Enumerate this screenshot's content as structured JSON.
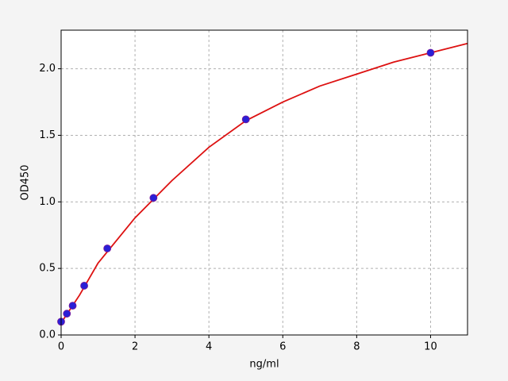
{
  "chart_data": {
    "type": "scatter",
    "xlabel": "ng/ml",
    "ylabel": "OD450",
    "xlim": [
      0,
      11
    ],
    "ylim": [
      0,
      2.29
    ],
    "xticks": [
      0,
      2,
      4,
      6,
      8,
      10
    ],
    "yticks": [
      {
        "value": 0,
        "label": "0.0"
      },
      0.5,
      {
        "value": 1,
        "label": "1.0"
      },
      1.5,
      {
        "value": 2,
        "label": "2.0"
      }
    ],
    "grid": true,
    "series": [
      {
        "type": "line",
        "color": "#dd1111",
        "x": [
          0,
          0.5,
          1,
          2,
          3,
          4,
          5,
          6,
          7,
          8,
          9,
          10,
          11
        ],
        "values": [
          0.09,
          0.3,
          0.54,
          0.88,
          1.16,
          1.41,
          1.61,
          1.75,
          1.87,
          1.96,
          2.05,
          2.12,
          2.19
        ]
      },
      {
        "type": "scatter",
        "color": "#2a1fd6",
        "x": [
          0,
          0.156,
          0.3125,
          0.625,
          1.25,
          2.5,
          5,
          10
        ],
        "values": [
          0.1,
          0.16,
          0.22,
          0.37,
          0.65,
          1.03,
          1.62,
          2.12
        ]
      }
    ]
  }
}
